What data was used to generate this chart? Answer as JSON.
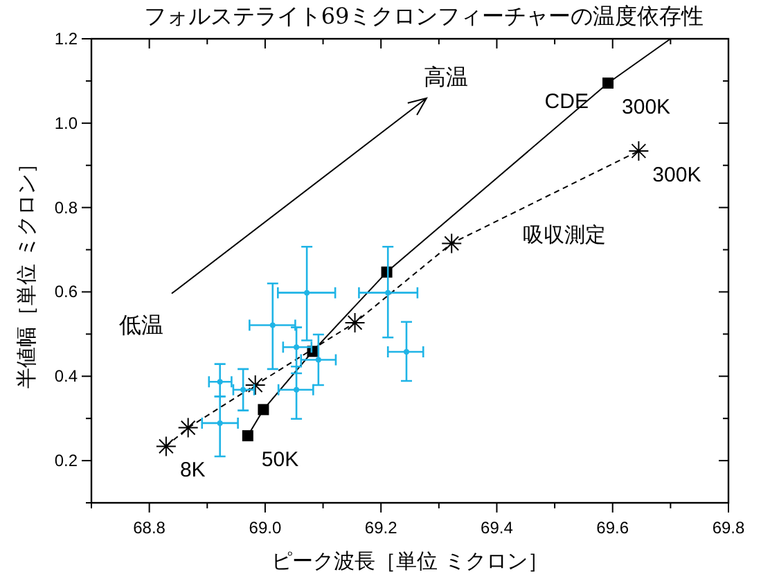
{
  "chart_data": {
    "type": "scatter",
    "title": "フォルステライト69ミクロンフィーチャーの温度依存性",
    "xlabel": "ピーク波長［単位 ミクロン］",
    "ylabel": "半値幅［単位 ミクロン］",
    "xlim": [
      68.7,
      69.8
    ],
    "ylim": [
      0.1,
      1.2
    ],
    "xticks": [
      {
        "value": 68.7,
        "label": null
      },
      68.8,
      {
        "value": 68.9,
        "label": null
      },
      {
        "value": 69.0,
        "label": "69.0"
      },
      {
        "value": 69.1,
        "label": null
      },
      69.2,
      {
        "value": 69.3,
        "label": null
      },
      69.4,
      {
        "value": 69.5,
        "label": null
      },
      69.6,
      {
        "value": 69.7,
        "label": null
      },
      69.8
    ],
    "yticks": [
      {
        "value": 0.1,
        "label": null
      },
      0.2,
      {
        "value": 0.3,
        "label": null
      },
      0.4,
      {
        "value": 0.5,
        "label": null
      },
      0.6,
      {
        "value": 0.7,
        "label": null
      },
      0.8,
      {
        "value": 0.9,
        "label": null
      },
      {
        "value": 1.0,
        "label": "1.0"
      },
      {
        "value": 1.1,
        "label": null
      },
      1.2
    ],
    "grid": false,
    "series": [
      {
        "name": "CDE",
        "type": "line",
        "color": "#000000",
        "marker": "square",
        "line_style": "solid",
        "x": [
          68.97,
          68.997,
          69.082,
          69.21,
          69.592
        ],
        "values": [
          0.259,
          0.321,
          0.459,
          0.647,
          1.095
        ]
      },
      {
        "type": "line",
        "color": "#000000",
        "marker": "none",
        "line_style": "solid",
        "x": [
          69.592,
          69.7
        ],
        "values": [
          1.095,
          1.2
        ]
      },
      {
        "name": "吸収測定",
        "type": "line",
        "color": "#000000",
        "marker": "cross",
        "line_style": "dashed",
        "x": [
          68.829,
          68.867,
          68.983,
          69.155,
          69.322,
          69.645
        ],
        "values": [
          0.234,
          0.278,
          0.379,
          0.527,
          0.715,
          0.934
        ]
      },
      {
        "color": "#1fb4e6",
        "marker": "circle",
        "x": [
          69.072,
          69.013,
          69.212,
          69.244,
          69.054,
          69.054,
          69.092,
          68.962,
          68.922,
          68.922
        ],
        "values": [
          0.598,
          0.521,
          0.598,
          0.458,
          0.469,
          0.368,
          0.439,
          0.368,
          0.387,
          0.289
        ],
        "errors": [
          [
            0.485,
            0.707
          ],
          [
            0.417,
            0.62
          ],
          [
            0.492,
            0.707
          ],
          [
            0.389,
            0.529
          ],
          [
            0.407,
            0.516
          ],
          [
            0.299,
            0.423
          ],
          [
            0.379,
            0.499
          ],
          [
            0.319,
            0.417
          ],
          [
            0.352,
            0.429
          ],
          [
            0.21,
            0.352
          ]
        ],
        "xerrors": [
          [
            69.022,
            69.121
          ],
          [
            68.973,
            69.052
          ],
          [
            69.162,
            69.263
          ],
          [
            69.212,
            69.273
          ],
          [
            69.031,
            69.08
          ],
          [
            69.023,
            69.083
          ],
          [
            69.062,
            69.122
          ],
          [
            68.945,
            68.981
          ],
          [
            68.903,
            68.942
          ],
          [
            68.891,
            68.953
          ]
        ]
      }
    ],
    "annotations": [
      "低温",
      "高温",
      {
        "text": "8K",
        "x": 68.829,
        "y": 0.234
      },
      {
        "text": "50K",
        "x": 68.97,
        "y": 0.259
      },
      {
        "text": "300K",
        "x": 69.592,
        "y": 1.095
      },
      {
        "text": "300K",
        "x": 69.645,
        "y": 0.934
      }
    ]
  }
}
